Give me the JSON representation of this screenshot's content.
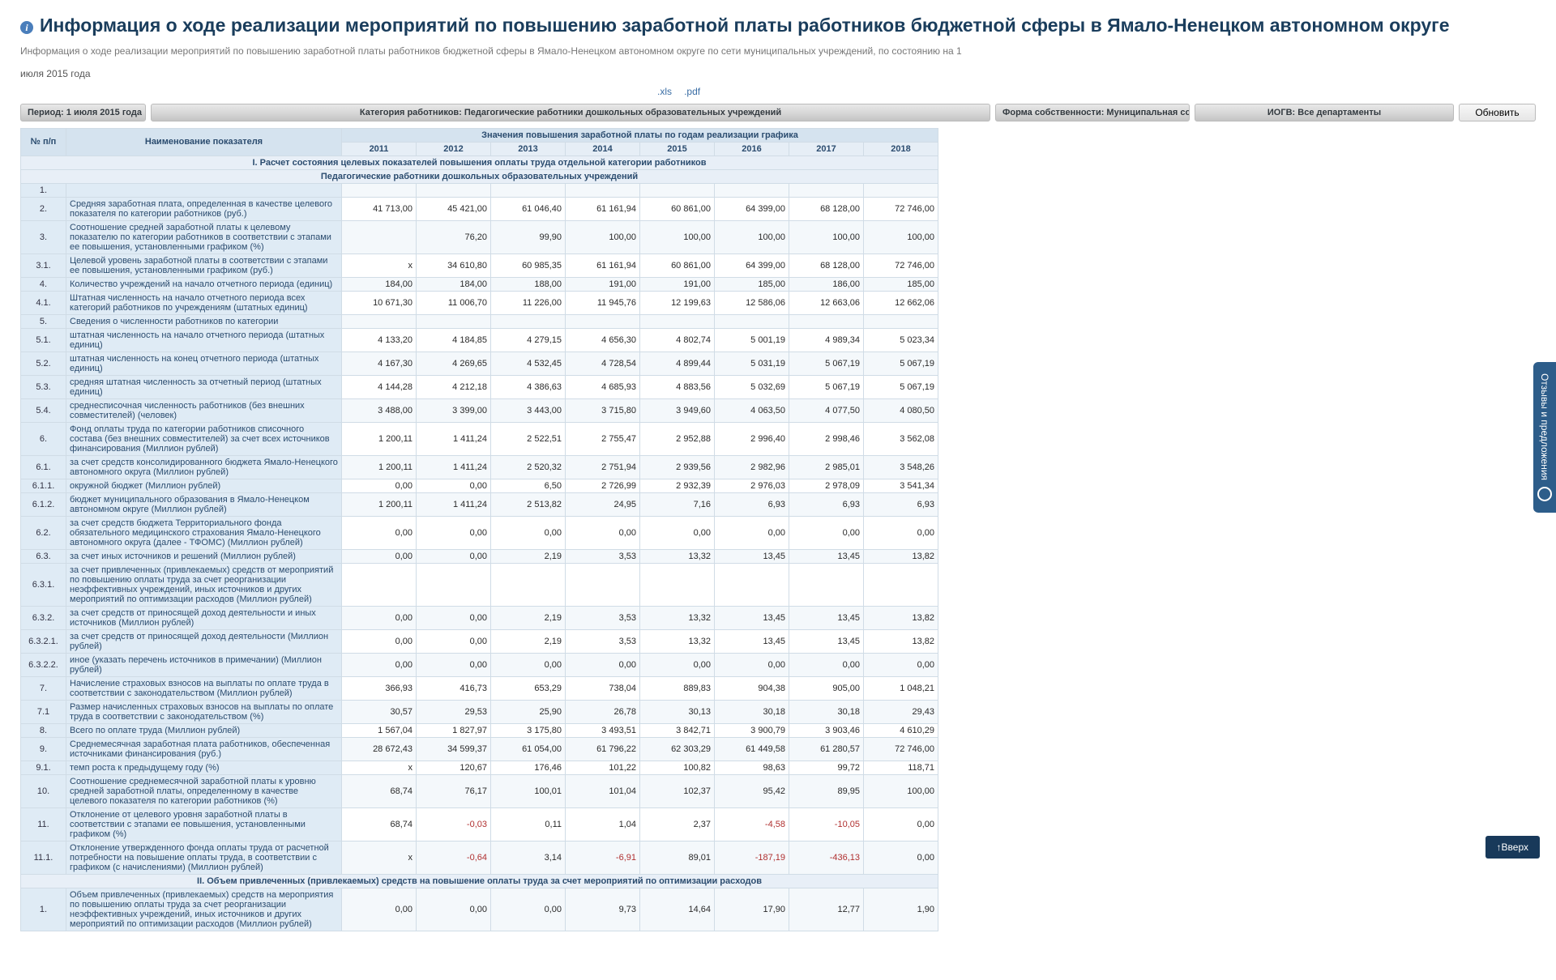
{
  "title": "Информация о ходе реализации мероприятий по повышению заработной платы работников бюджетной сферы в Ямало-Ненецком автономном округе",
  "subtitle": "Информация о ходе реализации мероприятий по повышению заработной платы работников бюджетной сферы в Ямало-Ненецком автономном округе по сети муниципальных учреждений, по состоянию на 1",
  "subtitle2": "июля 2015 года",
  "downloads": {
    "xls": ".xls",
    "pdf": ".pdf"
  },
  "filters": {
    "period": "Период: 1 июля 2015 года",
    "category": "Категория работников: Педагогические работники дошкольных образовательных учреждений",
    "ownership": "Форма собственности: Муниципальная собственность",
    "iogv": "ИОГВ: Все департаменты",
    "refresh": "Обновить"
  },
  "table": {
    "col_num": "№ п/п",
    "col_name": "Наименование показателя",
    "col_values": "Значения повышения заработной платы по годам реализации графика",
    "years": [
      "2011",
      "2012",
      "2013",
      "2014",
      "2015",
      "2016",
      "2017",
      "2018"
    ],
    "section1": "I. Расчет состояния целевых показателей повышения оплаты труда отдельной категории работников",
    "section1b": "Педагогические работники дошкольных образовательных учреждений",
    "section2": "II. Объем привлеченных (привлекаемых) средств на повышение оплаты труда за счет мероприятий по оптимизации расходов",
    "rows": [
      {
        "n": "1.",
        "name": "",
        "v": [
          "",
          "",
          "",
          "",
          "",
          "",
          "",
          ""
        ]
      },
      {
        "n": "2.",
        "name": "Средняя заработная плата, определенная в качестве целевого показателя по категории работников (руб.)",
        "v": [
          "41 713,00",
          "45 421,00",
          "61 046,40",
          "61 161,94",
          "60 861,00",
          "64 399,00",
          "68 128,00",
          "72 746,00"
        ]
      },
      {
        "n": "3.",
        "name": "Соотношение средней заработной платы к целевому показателю по категории работников в соответствии с этапами ее повышения, установленными графиком (%)",
        "v": [
          "",
          "76,20",
          "99,90",
          "100,00",
          "100,00",
          "100,00",
          "100,00",
          "100,00"
        ]
      },
      {
        "n": "3.1.",
        "name": "Целевой уровень заработной платы в соответствии с этапами ее повышения, установленными графиком (руб.)",
        "v": [
          "x",
          "34 610,80",
          "60 985,35",
          "61 161,94",
          "60 861,00",
          "64 399,00",
          "68 128,00",
          "72 746,00"
        ]
      },
      {
        "n": "4.",
        "name": "Количество учреждений на начало отчетного периода (единиц)",
        "v": [
          "184,00",
          "184,00",
          "188,00",
          "191,00",
          "191,00",
          "185,00",
          "186,00",
          "185,00"
        ]
      },
      {
        "n": "4.1.",
        "name": "Штатная численность на начало отчетного периода всех категорий работников по учреждениям (штатных единиц)",
        "v": [
          "10 671,30",
          "11 006,70",
          "11 226,00",
          "11 945,76",
          "12 199,63",
          "12 586,06",
          "12 663,06",
          "12 662,06"
        ]
      },
      {
        "n": "5.",
        "name": "Сведения о численности работников по категории",
        "v": [
          "",
          "",
          "",
          "",
          "",
          "",
          "",
          ""
        ]
      },
      {
        "n": "5.1.",
        "name": "штатная численность на начало отчетного периода (штатных единиц)",
        "v": [
          "4 133,20",
          "4 184,85",
          "4 279,15",
          "4 656,30",
          "4 802,74",
          "5 001,19",
          "4 989,34",
          "5 023,34"
        ]
      },
      {
        "n": "5.2.",
        "name": "штатная численность на конец отчетного периода (штатных единиц)",
        "v": [
          "4 167,30",
          "4 269,65",
          "4 532,45",
          "4 728,54",
          "4 899,44",
          "5 031,19",
          "5 067,19",
          "5 067,19"
        ]
      },
      {
        "n": "5.3.",
        "name": "средняя штатная численность за отчетный период (штатных единиц)",
        "v": [
          "4 144,28",
          "4 212,18",
          "4 386,63",
          "4 685,93",
          "4 883,56",
          "5 032,69",
          "5 067,19",
          "5 067,19"
        ]
      },
      {
        "n": "5.4.",
        "name": "среднесписочная численность работников (без внешних совместителей) (человек)",
        "v": [
          "3 488,00",
          "3 399,00",
          "3 443,00",
          "3 715,80",
          "3 949,60",
          "4 063,50",
          "4 077,50",
          "4 080,50"
        ]
      },
      {
        "n": "6.",
        "name": "Фонд оплаты труда по категории работников списочного состава (без внешних совместителей) за счет всех источников финансирования (Миллион рублей)",
        "v": [
          "1 200,11",
          "1 411,24",
          "2 522,51",
          "2 755,47",
          "2 952,88",
          "2 996,40",
          "2 998,46",
          "3 562,08"
        ]
      },
      {
        "n": "6.1.",
        "name": "за счет средств консолидированного бюджета Ямало-Ненецкого автономного округа (Миллион рублей)",
        "v": [
          "1 200,11",
          "1 411,24",
          "2 520,32",
          "2 751,94",
          "2 939,56",
          "2 982,96",
          "2 985,01",
          "3 548,26"
        ]
      },
      {
        "n": "6.1.1.",
        "name": "окружной бюджет (Миллион рублей)",
        "v": [
          "0,00",
          "0,00",
          "6,50",
          "2 726,99",
          "2 932,39",
          "2 976,03",
          "2 978,09",
          "3 541,34"
        ]
      },
      {
        "n": "6.1.2.",
        "name": "бюджет муниципального образования в Ямало-Ненецком автономном округе (Миллион рублей)",
        "v": [
          "1 200,11",
          "1 411,24",
          "2 513,82",
          "24,95",
          "7,16",
          "6,93",
          "6,93",
          "6,93"
        ]
      },
      {
        "n": "6.2.",
        "name": "за счет средств бюджета Территориального фонда обязательного медицинского страхования Ямало-Ненецкого автономного округа (далее - ТФОМС) (Миллион рублей)",
        "v": [
          "0,00",
          "0,00",
          "0,00",
          "0,00",
          "0,00",
          "0,00",
          "0,00",
          "0,00"
        ]
      },
      {
        "n": "6.3.",
        "name": "за счет иных источников и решений (Миллион рублей)",
        "v": [
          "0,00",
          "0,00",
          "2,19",
          "3,53",
          "13,32",
          "13,45",
          "13,45",
          "13,82"
        ]
      },
      {
        "n": "6.3.1.",
        "name": "за счет привлеченных (привлекаемых) средств от мероприятий по повышению оплаты труда за счет реорганизации неэффективных учреждений, иных источников и других мероприятий по оптимизации расходов (Миллион рублей)",
        "v": [
          "",
          "",
          "",
          "",
          "",
          "",
          "",
          ""
        ]
      },
      {
        "n": "6.3.2.",
        "name": "за счет средств от приносящей доход деятельности и иных источников (Миллион рублей)",
        "v": [
          "0,00",
          "0,00",
          "2,19",
          "3,53",
          "13,32",
          "13,45",
          "13,45",
          "13,82"
        ]
      },
      {
        "n": "6.3.2.1.",
        "name": "за счет средств от приносящей доход деятельности (Миллион рублей)",
        "v": [
          "0,00",
          "0,00",
          "2,19",
          "3,53",
          "13,32",
          "13,45",
          "13,45",
          "13,82"
        ]
      },
      {
        "n": "6.3.2.2.",
        "name": "иное (указать перечень источников в примечании) (Миллион рублей)",
        "v": [
          "0,00",
          "0,00",
          "0,00",
          "0,00",
          "0,00",
          "0,00",
          "0,00",
          "0,00"
        ]
      },
      {
        "n": "7.",
        "name": "Начисление страховых взносов на выплаты по оплате труда в соответствии с законодательством (Миллион рублей)",
        "v": [
          "366,93",
          "416,73",
          "653,29",
          "738,04",
          "889,83",
          "904,38",
          "905,00",
          "1 048,21"
        ]
      },
      {
        "n": "7.1",
        "name": "Размер начисленных страховых взносов на выплаты по оплате труда в соответствии с законодательством (%)",
        "v": [
          "30,57",
          "29,53",
          "25,90",
          "26,78",
          "30,13",
          "30,18",
          "30,18",
          "29,43"
        ]
      },
      {
        "n": "8.",
        "name": "Всего по оплате труда (Миллион рублей)",
        "v": [
          "1 567,04",
          "1 827,97",
          "3 175,80",
          "3 493,51",
          "3 842,71",
          "3 900,79",
          "3 903,46",
          "4 610,29"
        ]
      },
      {
        "n": "9.",
        "name": "Среднемесячная заработная плата работников, обеспеченная источниками финансирования (руб.)",
        "v": [
          "28 672,43",
          "34 599,37",
          "61 054,00",
          "61 796,22",
          "62 303,29",
          "61 449,58",
          "61 280,57",
          "72 746,00"
        ]
      },
      {
        "n": "9.1.",
        "name": "темп роста к предыдущему году (%)",
        "v": [
          "x",
          "120,67",
          "176,46",
          "101,22",
          "100,82",
          "98,63",
          "99,72",
          "118,71"
        ]
      },
      {
        "n": "10.",
        "name": "Соотношение среднемесячной заработной платы к уровню средней заработной платы, определенному в качестве целевого показателя по категории работников (%)",
        "v": [
          "68,74",
          "76,17",
          "100,01",
          "101,04",
          "102,37",
          "95,42",
          "89,95",
          "100,00"
        ]
      },
      {
        "n": "11.",
        "name": "Отклонение от целевого уровня заработной платы в соответствии с этапами ее повышения, установленными графиком (%)",
        "v": [
          "68,74",
          "-0,03",
          "0,11",
          "1,04",
          "2,37",
          "-4,58",
          "-10,05",
          "0,00"
        ]
      },
      {
        "n": "11.1.",
        "name": "Отклонение утвержденного фонда оплаты труда от расчетной потребности на повышение оплаты труда, в соответствии с графиком (с начислениями) (Миллион рублей)",
        "v": [
          "x",
          "-0,64",
          "3,14",
          "-6,91",
          "89,01",
          "-187,19",
          "-436,13",
          "0,00"
        ]
      }
    ],
    "rows2": [
      {
        "n": "1.",
        "name": "Объем привлеченных (привлекаемых) средств на мероприятия по повышению оплаты труда за счет реорганизации неэффективных учреждений, иных источников и других мероприятий по оптимизации расходов (Миллион рублей)",
        "v": [
          "0,00",
          "0,00",
          "0,00",
          "9,73",
          "14,64",
          "17,90",
          "12,77",
          "1,90"
        ]
      }
    ]
  },
  "feedback": "Отзывы и предложения",
  "top_btn": "↑Вверх"
}
